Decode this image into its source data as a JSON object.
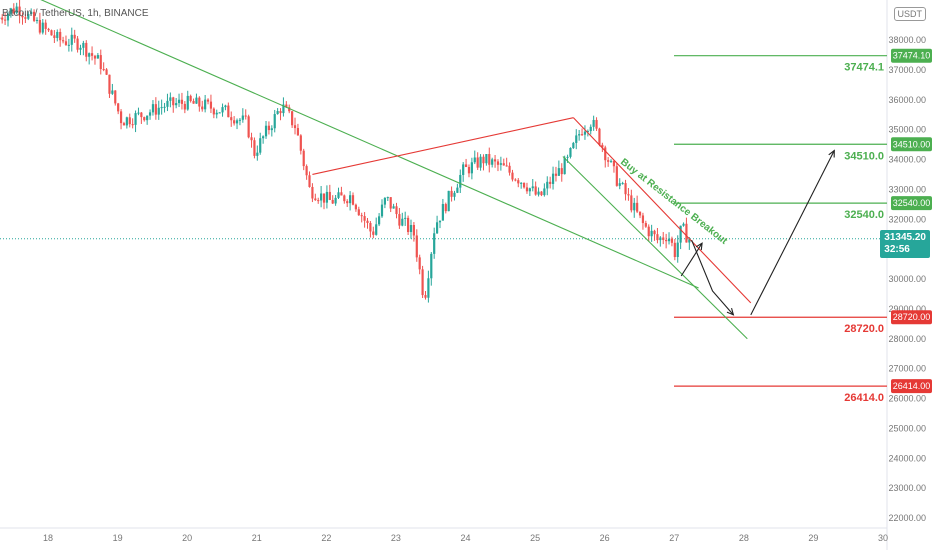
{
  "header": {
    "symbol": "Bitcoin / TetherUS, 1h, BINANCE",
    "usdt_badge": "USDT"
  },
  "current_price": {
    "price": "31345.20",
    "countdown": "32:56",
    "color": "#26a69a"
  },
  "annotation": {
    "text": "Buy at Resistance Breakout",
    "color": "#4caf50"
  },
  "levels": [
    {
      "price": 37474.1,
      "label": "37474.1",
      "badge": "37474.10",
      "color": "#4caf50"
    },
    {
      "price": 34510.0,
      "label": "34510.0",
      "badge": "34510.00",
      "color": "#4caf50"
    },
    {
      "price": 32540.0,
      "label": "32540.0",
      "badge": "32540.00",
      "color": "#4caf50"
    },
    {
      "price": 28720.0,
      "label": "28720.0",
      "badge": "28720.00",
      "color": "#e53935"
    },
    {
      "price": 26414.0,
      "label": "26414.0",
      "badge": "26414.00",
      "color": "#e53935"
    }
  ],
  "chart_data": {
    "type": "candlestick",
    "x_ticks": [
      "18",
      "19",
      "20",
      "21",
      "22",
      "23",
      "24",
      "25",
      "26",
      "27",
      "28",
      "29",
      "30"
    ],
    "y_ticks": [
      "38000.00",
      "37000.00",
      "36000.00",
      "35000.00",
      "34000.00",
      "33000.00",
      "32000.00",
      "31000.00",
      "30000.00",
      "29000.00",
      "28000.00",
      "27000.00",
      "26000.00",
      "25000.00",
      "24000.00",
      "23000.00",
      "22000.00"
    ],
    "ylim": [
      21700,
      39300
    ],
    "xlim_day": [
      17.3,
      30.3
    ],
    "up_color": "#26a69a",
    "down_color": "#ef5350",
    "path": [
      [
        17.3,
        38700
      ],
      [
        17.6,
        39100
      ],
      [
        17.9,
        38500
      ],
      [
        18.2,
        38000
      ],
      [
        18.5,
        37900
      ],
      [
        18.8,
        37200
      ],
      [
        19.1,
        35300
      ],
      [
        19.4,
        35500
      ],
      [
        19.7,
        35800
      ],
      [
        20.0,
        35900
      ],
      [
        20.3,
        35800
      ],
      [
        20.6,
        35600
      ],
      [
        20.9,
        35200
      ],
      [
        21.0,
        34200
      ],
      [
        21.2,
        35000
      ],
      [
        21.4,
        35800
      ],
      [
        21.6,
        35100
      ],
      [
        21.8,
        33000
      ],
      [
        22.1,
        32600
      ],
      [
        22.4,
        32800
      ],
      [
        22.7,
        31500
      ],
      [
        22.9,
        32700
      ],
      [
        23.1,
        32000
      ],
      [
        23.3,
        31500
      ],
      [
        23.45,
        29300
      ],
      [
        23.6,
        31800
      ],
      [
        23.8,
        32700
      ],
      [
        24.0,
        33600
      ],
      [
        24.3,
        34000
      ],
      [
        24.6,
        33700
      ],
      [
        24.9,
        33200
      ],
      [
        25.1,
        32700
      ],
      [
        25.3,
        33400
      ],
      [
        25.5,
        33900
      ],
      [
        25.7,
        35000
      ],
      [
        25.85,
        35300
      ],
      [
        26.0,
        34500
      ],
      [
        26.2,
        33400
      ],
      [
        26.4,
        32600
      ],
      [
        26.6,
        31800
      ],
      [
        26.8,
        31300
      ],
      [
        26.95,
        31500
      ],
      [
        27.05,
        30900
      ],
      [
        27.15,
        31700
      ],
      [
        27.25,
        31345
      ]
    ],
    "trendlines": [
      {
        "from": [
          17.85,
          39400
        ],
        "to": [
          27.35,
          29700
        ],
        "color": "#4caf50"
      },
      {
        "from": [
          25.4,
          34100
        ],
        "to": [
          28.05,
          28000
        ],
        "color": "#4caf50"
      },
      {
        "from": [
          21.8,
          33500
        ],
        "to": [
          25.55,
          35400
        ],
        "color": "#e53935"
      },
      {
        "from": [
          25.55,
          35400
        ],
        "to": [
          28.1,
          29200
        ],
        "color": "#e53935"
      }
    ],
    "arrows": [
      {
        "points": [
          [
            27.25,
            31300
          ],
          [
            27.55,
            29600
          ],
          [
            27.85,
            28800
          ]
        ],
        "color": "#222222"
      },
      {
        "points": [
          [
            27.1,
            30100
          ],
          [
            27.25,
            30650
          ],
          [
            27.4,
            31200
          ]
        ],
        "color": "#222222"
      },
      {
        "points": [
          [
            28.1,
            28800
          ],
          [
            28.8,
            32000
          ],
          [
            29.3,
            34300
          ]
        ],
        "color": "#222222"
      }
    ]
  }
}
